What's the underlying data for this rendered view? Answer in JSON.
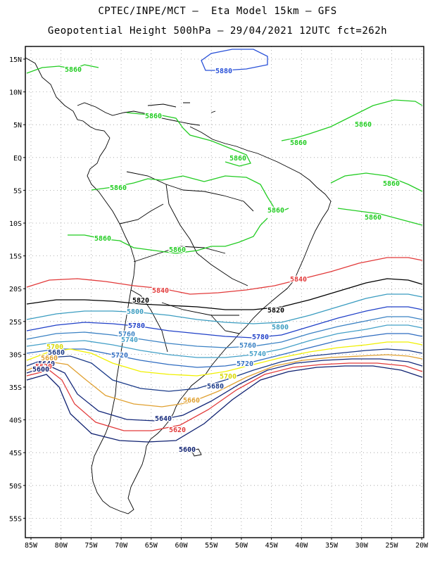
{
  "header": {
    "line1": "CPTEC/INPE/MCT –  Eta Model 15km – GFS",
    "line2": "Geopotential Height 500hPa – 29/04/2021 12UTC fct=262h"
  },
  "axes": {
    "lat_labels": [
      "15N",
      "10N",
      "5N",
      "EQ",
      "5S",
      "10S",
      "15S",
      "20S",
      "25S",
      "30S",
      "35S",
      "40S",
      "45S",
      "50S",
      "55S"
    ],
    "lon_labels": [
      "85W",
      "80W",
      "75W",
      "70W",
      "65W",
      "60W",
      "55W",
      "50W",
      "45W",
      "40W",
      "35W",
      "30W",
      "25W",
      "20W"
    ]
  },
  "colors": {
    "c5880": "#2850d8",
    "c5860": "#22cc22",
    "c5840": "#e23a3a",
    "c5820": "#000000",
    "c5800": "#3a9cc0",
    "c5780": "#2040c8",
    "c5760": "#3b82c4",
    "c5740": "#44a0c8",
    "c5720": "#2f6cc0",
    "c5700": "#f0f000",
    "c5680": "#1a3a88",
    "c5660": "#e0a030",
    "c5640": "#14287a",
    "c5620": "#e23a3a",
    "c5600": "#0e2070",
    "coast": "#000000"
  },
  "labels": {
    "l5880a": "5880",
    "l5860a": "5860",
    "l5860b": "5860",
    "l5860c": "5860",
    "l5860d": "5860",
    "l5860e": "5860",
    "l5860f": "5860",
    "l5860g": "5860",
    "l5860h": "5860",
    "l5860i": "5860",
    "l5860j": "5860",
    "l5840a": "5840",
    "l5840b": "5840",
    "l5820a": "5820",
    "l5820b": "5820",
    "l5800a": "5800",
    "l5800b": "5800",
    "l5780a": "5780",
    "l5780b": "5780",
    "l5760a": "5760",
    "l5760b": "5760",
    "l5740a": "5740",
    "l5740b": "5740",
    "l5720a": "5720",
    "l5720b": "5720",
    "l5700a": "5700",
    "l5700b": "5700",
    "l5680a": "5680",
    "l5680b": "5680",
    "l5660a": "5660",
    "l5660b": "5660",
    "l5640a": "5640",
    "l5640b": "5640",
    "l5620a": "5620",
    "l5620b": "5620",
    "l5600a": "5600",
    "l5600b": "5600"
  }
}
